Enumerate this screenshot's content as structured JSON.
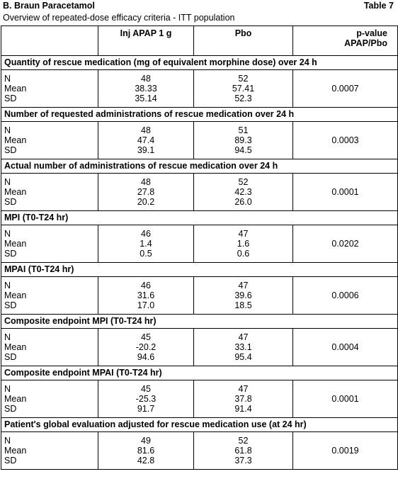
{
  "header": {
    "title": "B. Braun Paracetamol",
    "table_label": "Table 7",
    "subtitle": "Overview of repeated-dose efficacy criteria - ITT population"
  },
  "table": {
    "columns": {
      "treatment": "Inj APAP 1 g",
      "placebo": "Pbo",
      "p_value": [
        "p-value",
        "APAP/Pbo"
      ]
    },
    "sections": [
      {
        "title": "Quantity of rescue medication (mg of equivalent morphine dose) over 24 h",
        "labels": [
          "N",
          "Mean",
          "SD"
        ],
        "treatment": [
          "48",
          "38.33",
          "35.14"
        ],
        "placebo": [
          "52",
          "57.41",
          "52.3"
        ],
        "p_value": "0.0007"
      },
      {
        "title": "Number of requested administrations of rescue medication over 24 h",
        "labels": [
          "N",
          "Mean",
          "SD"
        ],
        "treatment": [
          "48",
          "47.4",
          "39.1"
        ],
        "placebo": [
          "51",
          "89.3",
          "94.5"
        ],
        "p_value": "0.0003"
      },
      {
        "title": "Actual number of administrations of rescue medication over 24 h",
        "labels": [
          "N",
          "Mean",
          "SD"
        ],
        "treatment": [
          "48",
          "27.8",
          "20.2"
        ],
        "placebo": [
          "52",
          "42.3",
          "26.0"
        ],
        "p_value": "0.0001"
      },
      {
        "title": "MPI (T0-T24 hr)",
        "labels": [
          "N",
          "Mean",
          "SD"
        ],
        "treatment": [
          "46",
          "1.4",
          "0.5"
        ],
        "placebo": [
          "47",
          "1.6",
          "0.6"
        ],
        "p_value": "0.0202"
      },
      {
        "title": "MPAI (T0-T24 hr)",
        "labels": [
          "N",
          "Mean",
          "SD"
        ],
        "treatment": [
          "46",
          "31.6",
          "17.0"
        ],
        "placebo": [
          "47",
          "39.6",
          "18.5"
        ],
        "p_value": "0.0006"
      },
      {
        "title": "Composite endpoint MPI (T0-T24 hr)",
        "labels": [
          "N",
          "Mean",
          "SD"
        ],
        "treatment": [
          "45",
          "-20.2",
          "94.6"
        ],
        "placebo": [
          "47",
          "33.1",
          "95.4"
        ],
        "p_value": "0.0004"
      },
      {
        "title": "Composite endpoint MPAI (T0-T24 hr)",
        "labels": [
          "N",
          "Mean",
          "SD"
        ],
        "treatment": [
          "45",
          "-25.3",
          "91.7"
        ],
        "placebo": [
          "47",
          "37.8",
          "91.4"
        ],
        "p_value": "0.0001"
      },
      {
        "title": "Patient's global evaluation adjusted for rescue medication use (at 24 hr)",
        "labels": [
          "N",
          "Mean",
          "SD"
        ],
        "treatment": [
          "49",
          "81.6",
          "42.8"
        ],
        "placebo": [
          "52",
          "61.8",
          "37.3"
        ],
        "p_value": "0.0019"
      }
    ]
  }
}
